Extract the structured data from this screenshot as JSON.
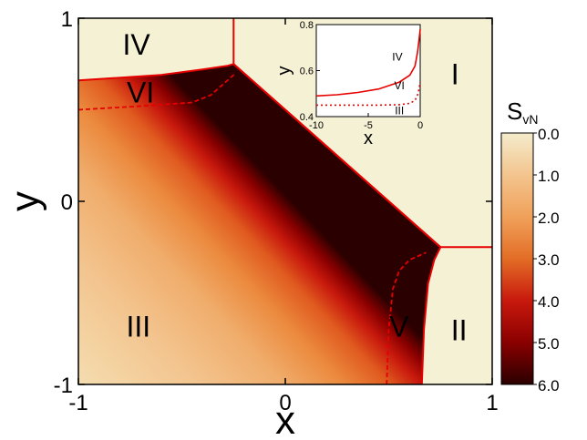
{
  "chart_data": {
    "type": "heatmap",
    "main": {
      "xlabel": "x",
      "ylabel": "y",
      "xlim": [
        -1,
        1
      ],
      "ylim": [
        -1,
        1
      ],
      "x_ticks": [
        -1,
        0,
        1
      ],
      "y_ticks": [
        -1,
        0,
        1
      ],
      "x_tick_labels": [
        "-1",
        "0",
        "1"
      ],
      "y_tick_labels": [
        "-1",
        "0",
        "1"
      ],
      "region_labels": [
        {
          "text": "IV",
          "x": -0.72,
          "y": 0.86
        },
        {
          "text": "VI",
          "x": -0.7,
          "y": 0.6
        },
        {
          "text": "I",
          "x": 0.82,
          "y": 0.7
        },
        {
          "text": "III",
          "x": -0.71,
          "y": -0.68
        },
        {
          "text": "V",
          "x": 0.55,
          "y": -0.68
        },
        {
          "text": "II",
          "x": 0.84,
          "y": -0.7
        }
      ],
      "boundaries": {
        "diagonal": [
          [
            -0.25,
            0.75
          ],
          [
            0.75,
            -0.25
          ]
        ],
        "I_IV": [
          [
            -0.25,
            0.75
          ],
          [
            -0.25,
            1.0
          ]
        ],
        "I_II": [
          [
            0.75,
            -0.25
          ],
          [
            1.0,
            -0.25
          ]
        ],
        "IV_VI": [
          [
            -1.0,
            0.66
          ],
          [
            -0.6,
            0.69
          ],
          [
            -0.4,
            0.72
          ],
          [
            -0.28,
            0.74
          ],
          [
            -0.25,
            0.75
          ]
        ],
        "VI_III_dashed": [
          [
            -1.0,
            0.5
          ],
          [
            -0.7,
            0.52
          ],
          [
            -0.45,
            0.54
          ],
          [
            -0.36,
            0.58
          ],
          [
            -0.3,
            0.64
          ],
          [
            -0.24,
            0.7
          ]
        ],
        "V_II": [
          [
            0.66,
            -1.0
          ],
          [
            0.67,
            -0.7
          ],
          [
            0.69,
            -0.45
          ],
          [
            0.72,
            -0.32
          ],
          [
            0.75,
            -0.25
          ]
        ],
        "III_V_dashed": [
          [
            0.49,
            -1.0
          ],
          [
            0.5,
            -0.7
          ],
          [
            0.52,
            -0.48
          ],
          [
            0.55,
            -0.38
          ],
          [
            0.6,
            -0.32
          ],
          [
            0.68,
            -0.28
          ]
        ]
      }
    },
    "colorbar": {
      "label_main": "S",
      "label_sub": "vN",
      "ticks": [
        0.0,
        1.0,
        2.0,
        3.0,
        4.0,
        5.0,
        6.0
      ],
      "tick_labels": [
        "0.0",
        "1.0",
        "2.0",
        "3.0",
        "4.0",
        "5.0",
        "6.0"
      ],
      "range": [
        0,
        6
      ],
      "colors": [
        "#f4eccc",
        "#f3c48e",
        "#f0a15a",
        "#e36d26",
        "#c8190d",
        "#8a0000",
        "#2a0000"
      ]
    },
    "inset": {
      "type": "line",
      "xlabel": "x",
      "ylabel": "y",
      "xlim": [
        -10,
        0
      ],
      "ylim": [
        0.4,
        0.8
      ],
      "x_tick_labels": [
        "-10",
        "-5",
        "0"
      ],
      "y_tick_labels": [
        "0.4",
        "0.6",
        "0.8"
      ],
      "region_labels": [
        {
          "text": "IV",
          "x": -2.2,
          "y": 0.66
        },
        {
          "text": "VI",
          "x": -2.0,
          "y": 0.535
        },
        {
          "text": "III",
          "x": -2.0,
          "y": 0.425
        }
      ],
      "series": [
        {
          "style": "solid",
          "x": [
            -10,
            -8,
            -6,
            -4,
            -2,
            -1,
            -0.5,
            -0.25,
            -0.1,
            0
          ],
          "y": [
            0.49,
            0.495,
            0.505,
            0.52,
            0.55,
            0.58,
            0.62,
            0.68,
            0.74,
            0.78
          ]
        },
        {
          "style": "dotted",
          "x": [
            -10,
            -8,
            -6,
            -4,
            -2,
            -1,
            -0.5,
            -0.2,
            0
          ],
          "y": [
            0.45,
            0.45,
            0.45,
            0.45,
            0.452,
            0.458,
            0.47,
            0.5,
            0.55
          ]
        }
      ]
    },
    "colors": {
      "region_fill": "#f4f1d4",
      "boundary": "#e60000",
      "axis": "#000000"
    }
  }
}
